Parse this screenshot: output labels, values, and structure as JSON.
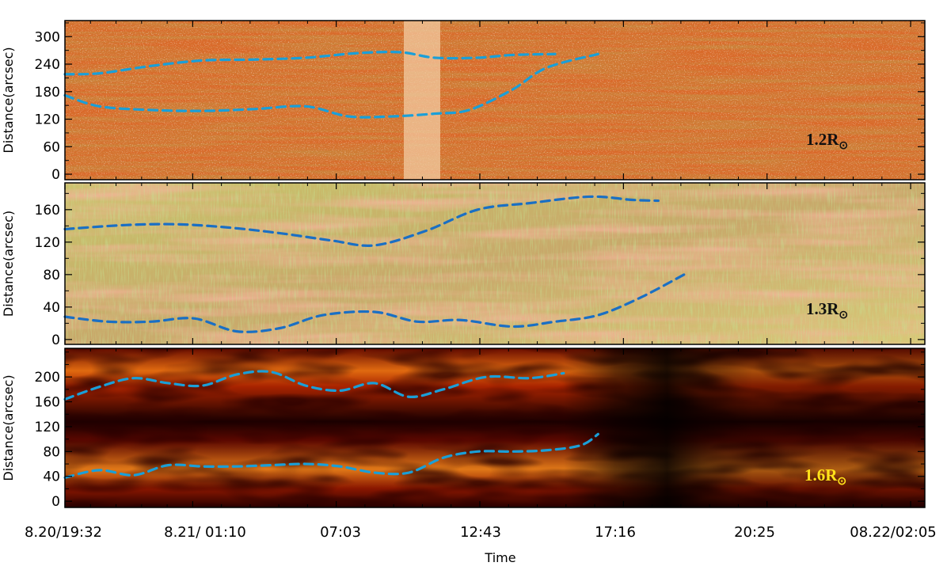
{
  "chart_data": [
    {
      "type": "heatmap",
      "panel_label": "1.2R",
      "panel_label_sub": "⊙",
      "ylabel": "Distance(arcsec)",
      "ylim": [
        -12,
        335
      ],
      "yticks": [
        0,
        60,
        120,
        180,
        240,
        300
      ],
      "colormap": "red-temperature",
      "dashed_traces": [
        {
          "x": [
            0,
            0.04,
            0.1,
            0.16,
            0.22,
            0.28,
            0.34,
            0.39,
            0.43,
            0.48,
            0.52,
            0.57
          ],
          "y": [
            218,
            220,
            236,
            248,
            250,
            254,
            264,
            266,
            254,
            254,
            260,
            262
          ]
        },
        {
          "x": [
            0,
            0.04,
            0.1,
            0.16,
            0.22,
            0.28,
            0.33,
            0.38,
            0.43,
            0.47,
            0.52,
            0.56,
            0.62
          ],
          "y": [
            172,
            148,
            140,
            138,
            142,
            148,
            126,
            126,
            132,
            140,
            184,
            232,
            262
          ]
        }
      ]
    },
    {
      "type": "heatmap",
      "panel_label": "1.3R",
      "panel_label_sub": "⊙",
      "ylabel": "Distance(arcsec)",
      "ylim": [
        -6,
        193
      ],
      "yticks": [
        0,
        40,
        80,
        120,
        160
      ],
      "colormap": "green-yellow-red",
      "dashed_traces": [
        {
          "x": [
            0,
            0.07,
            0.13,
            0.19,
            0.25,
            0.31,
            0.36,
            0.42,
            0.48,
            0.54,
            0.61,
            0.66,
            0.69
          ],
          "y": [
            136,
            141,
            142,
            138,
            131,
            122,
            116,
            134,
            160,
            168,
            176,
            172,
            171
          ]
        },
        {
          "x": [
            0,
            0.05,
            0.1,
            0.15,
            0.2,
            0.25,
            0.3,
            0.36,
            0.41,
            0.46,
            0.52,
            0.57,
            0.62,
            0.67,
            0.72
          ],
          "y": [
            28,
            22,
            22,
            26,
            10,
            14,
            30,
            34,
            22,
            24,
            16,
            22,
            30,
            52,
            80
          ]
        }
      ]
    },
    {
      "type": "heatmap",
      "panel_label": "1.6R",
      "panel_label_sub": "⊙",
      "ylabel": "Distance(arcsec)",
      "ylim": [
        -10,
        246
      ],
      "yticks": [
        0,
        40,
        80,
        120,
        160,
        200
      ],
      "colormap": "red-temperature",
      "dashed_traces": [
        {
          "x": [
            0,
            0.04,
            0.08,
            0.12,
            0.16,
            0.2,
            0.24,
            0.28,
            0.32,
            0.36,
            0.4,
            0.44,
            0.49,
            0.54,
            0.58
          ],
          "y": [
            164,
            184,
            198,
            190,
            186,
            204,
            208,
            186,
            178,
            190,
            168,
            180,
            200,
            198,
            206
          ]
        },
        {
          "x": [
            0,
            0.04,
            0.08,
            0.12,
            0.16,
            0.2,
            0.24,
            0.28,
            0.32,
            0.36,
            0.4,
            0.44,
            0.48,
            0.52,
            0.56,
            0.6,
            0.62
          ],
          "y": [
            38,
            50,
            42,
            58,
            56,
            56,
            58,
            60,
            56,
            46,
            46,
            70,
            80,
            80,
            82,
            90,
            108
          ]
        }
      ]
    }
  ],
  "x_axis": {
    "xlabel": "Time",
    "ticks": [
      {
        "label": "8.20/19:32",
        "pos": 0.0
      },
      {
        "label": "8.21/ 01:10",
        "pos": 0.1486
      },
      {
        "label": "07:03",
        "pos": 0.3155
      },
      {
        "label": "12:43",
        "pos": 0.4825
      },
      {
        "label": "17:16",
        "pos": 0.6495
      },
      {
        "label": "20:25",
        "pos": 0.8165
      },
      {
        "label": "08.22/02:05",
        "pos": 0.9835
      }
    ]
  },
  "colors": {
    "trace": "#1a9fd8",
    "trace_dark": "#1a6fc4",
    "label_dark": "#111111",
    "label_yellow": "#ffe21a"
  }
}
